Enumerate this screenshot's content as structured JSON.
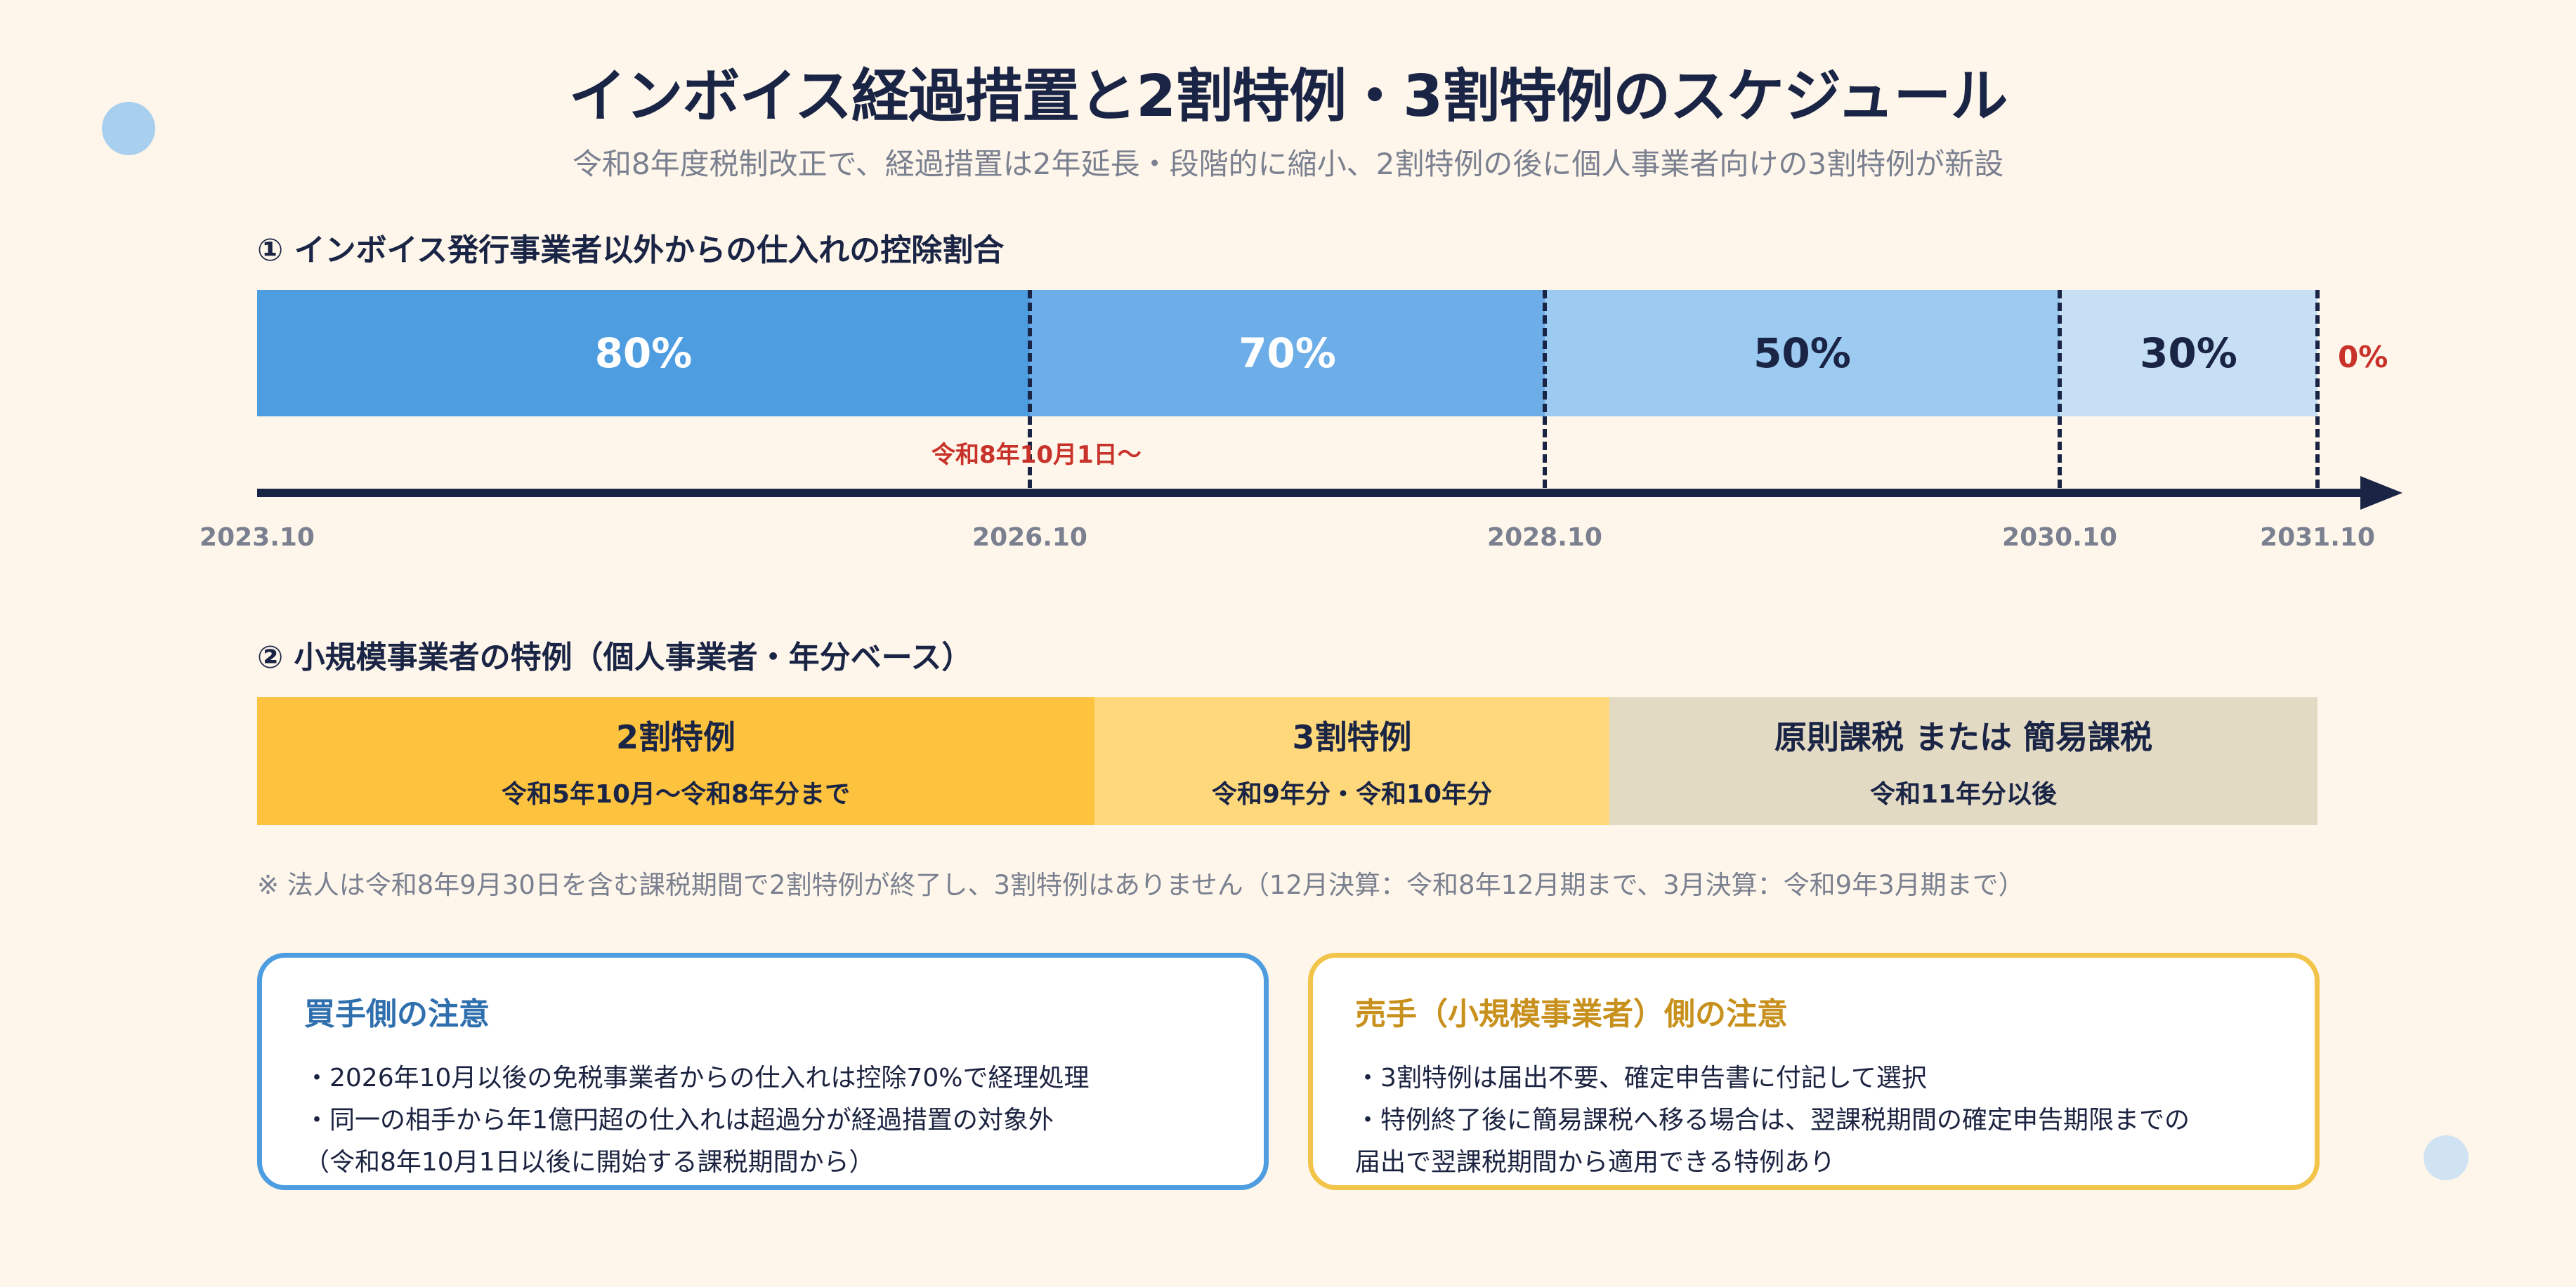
{
  "title": "インボイス経過措置と2割特例・3割特例のスケジュール",
  "subtitle": "令和8年度税制改正で、経過措置は2年延長・段階的に縮小、2割特例の後に個人事業者向けの3割特例が新設",
  "section1": {
    "heading": "① インボイス発行事業者以外からの仕入れの控除割合",
    "segments": [
      {
        "label": "80%",
        "color": "#4d9de0",
        "text_color": "#ffffff"
      },
      {
        "label": "70%",
        "color": "#6daee8",
        "text_color": "#ffffff"
      },
      {
        "label": "50%",
        "color": "#9ccaf0",
        "text_color": "#1a2445"
      },
      {
        "label": "30%",
        "color": "#c6dff5",
        "text_color": "#1a2445"
      }
    ],
    "end_label": "0%",
    "milestone_label": "令和8年10月1日〜",
    "dates": [
      "2023.10",
      "2026.10",
      "2028.10",
      "2030.10",
      "2031.10"
    ]
  },
  "section2": {
    "heading": "② 小規模事業者の特例（個人事業者・年分ベース）",
    "segments": [
      {
        "title": "2割特例",
        "sub": "令和5年10月〜令和8年分まで",
        "color": "#fdc23e"
      },
      {
        "title": "3割特例",
        "sub": "令和9年分・令和10年分",
        "color": "#fed87a"
      },
      {
        "title": "原則課税 または 簡易課税",
        "sub": "令和11年分以後",
        "color": "#e3dac4"
      }
    ],
    "note": "※ 法人は令和8年9月30日を含む課税期間で2割特例が終了し、3割特例はありません（12月決算：令和8年12月期まで、3月決算：令和9年3月期まで）"
  },
  "buyer_card": {
    "title": "買手側の注意",
    "lines": [
      "・2026年10月以後の免税事業者からの仕入れは控除70%で経理処理",
      "・同一の相手から年1億円超の仕入れは超過分が経過措置の対象外",
      "（令和8年10月1日以後に開始する課税期間から）"
    ],
    "accent": "#4d9de0",
    "title_color": "#2f6fae"
  },
  "seller_card": {
    "title": "売手（小規模事業者）側の注意",
    "lines": [
      "・3割特例は届出不要、確定申告書に付記して選択",
      "・特例終了後に簡易課税へ移る場合は、翌課税期間の確定申告期限までの",
      "届出で翌課税期間から適用できる特例あり"
    ],
    "accent": "#f3c44a",
    "title_color": "#c8901c"
  },
  "colors": {
    "background": "#fef6ea",
    "navy": "#1a2445",
    "milestone_red": "#c8322a",
    "decor_dot": "#a9cfee"
  }
}
